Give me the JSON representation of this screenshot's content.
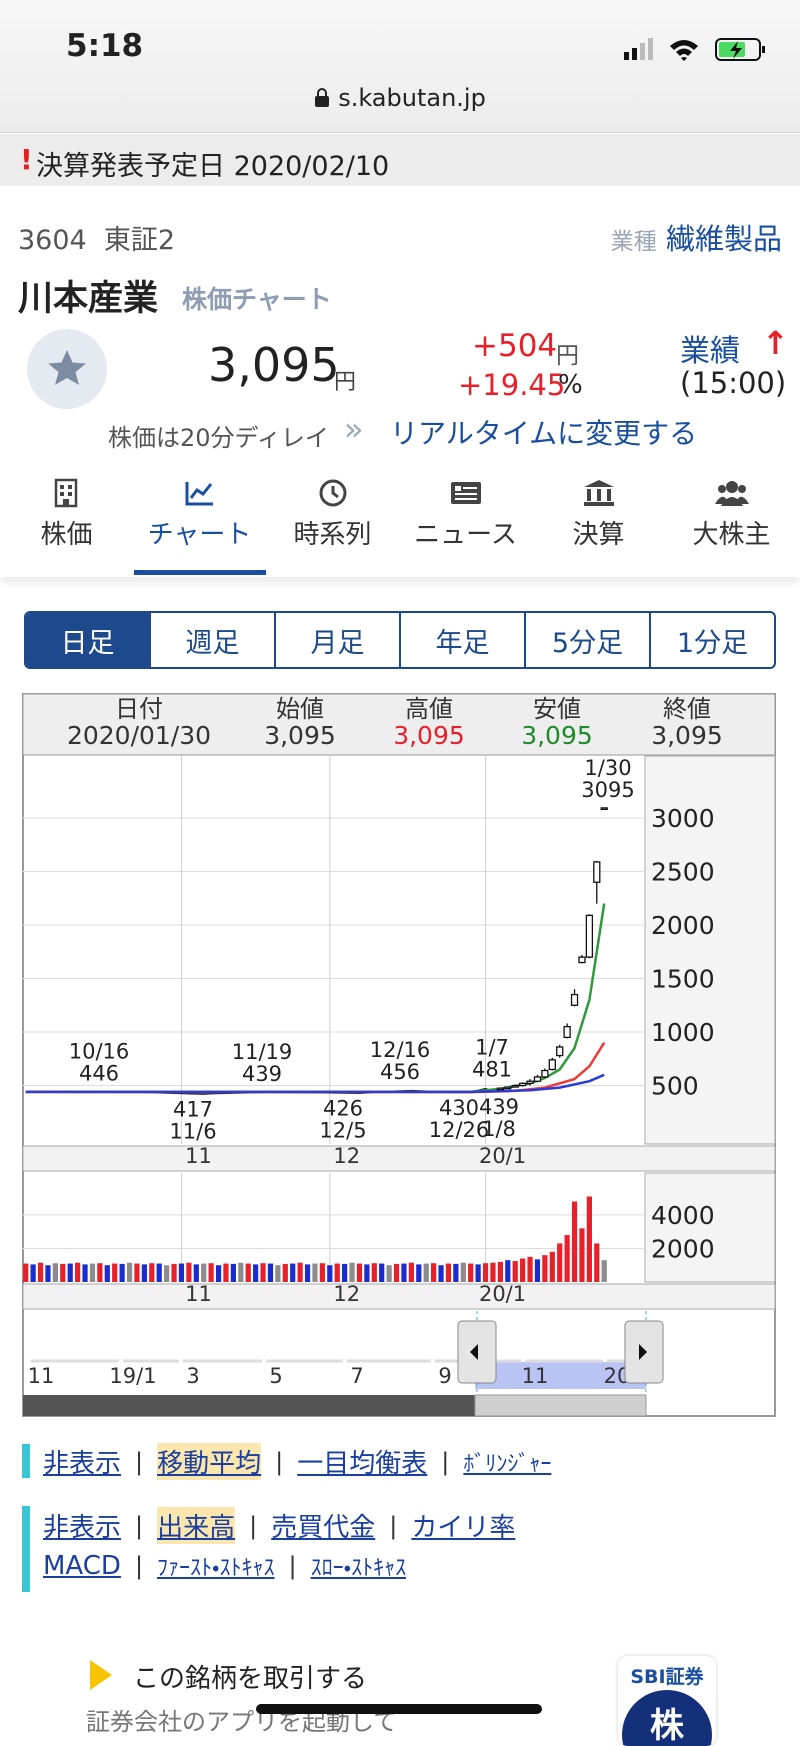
{
  "status_bar": {
    "time": "5:18",
    "url": "s.kabutan.jp"
  },
  "alert": {
    "mark": "!",
    "text": "決算発表予定日 2020/02/10"
  },
  "stock": {
    "code": "3604",
    "market": "東証2",
    "industry_label": "業種",
    "industry": "繊維製品",
    "name": "川本産業",
    "name_suffix": "株価チャート",
    "price": "3,095",
    "price_unit": "円",
    "change": "+504",
    "change_unit": "円",
    "change_pct": "+19.45",
    "pct_unit": "%",
    "results": "業績",
    "results_arrow": "↑",
    "time": "(15:00)",
    "delay_note": "株価は20分ディレイ",
    "delay_arrow": "»",
    "realtime_link": "リアルタイムに変更する"
  },
  "tabs": [
    "株価",
    "チャート",
    "時系列",
    "ニュース",
    "決算",
    "大株主"
  ],
  "periods": [
    "日足",
    "週足",
    "月足",
    "年足",
    "5分足",
    "1分足"
  ],
  "quote": {
    "headers": [
      "日付",
      "始値",
      "高値",
      "安値",
      "終値"
    ],
    "values": [
      "2020/01/30",
      "3,095",
      "3,095",
      "3,095",
      "3,095"
    ]
  },
  "chart_data": [
    {
      "type": "candlestick",
      "ylim": [
        0,
        3580
      ],
      "yticks": [
        500,
        1000,
        1500,
        2000,
        2500,
        3000
      ],
      "xlim": [
        -0.5,
        83.5
      ],
      "xticks": [
        {
          "value": 21,
          "label": "11"
        },
        {
          "value": 41,
          "label": "12"
        },
        {
          "value": 62,
          "label": "20/1"
        }
      ],
      "grid": true,
      "up_color": "#ffffff",
      "down_color": "#2a3bd6",
      "candles": {
        "x": [
          64,
          65,
          66,
          67,
          68,
          69,
          70,
          71,
          72,
          73,
          74,
          75,
          76,
          77,
          78
        ],
        "open": [
          470,
          481,
          490,
          500,
          520,
          540,
          580,
          650,
          780,
          950,
          1250,
          1650,
          1700,
          2400,
          3095
        ],
        "high": [
          481,
          490,
          510,
          530,
          560,
          600,
          660,
          760,
          880,
          1080,
          1400,
          1720,
          2100,
          2600,
          3095
        ],
        "low": [
          460,
          470,
          480,
          490,
          500,
          530,
          570,
          640,
          760,
          940,
          1240,
          1640,
          1690,
          2200,
          3095
        ],
        "close": [
          475,
          485,
          500,
          520,
          540,
          580,
          640,
          740,
          860,
          1050,
          1350,
          1700,
          2090,
          2590,
          3095
        ]
      },
      "series": [
        {
          "color": "#222222",
          "x": [
            0,
            5,
            10,
            11,
            15,
            20,
            24,
            25,
            30,
            33,
            35,
            40,
            45,
            48,
            50,
            52,
            55,
            58,
            60,
            62,
            63,
            64
          ],
          "values": [
            440,
            442,
            444,
            444,
            438,
            428,
            420,
            424,
            432,
            437,
            435,
            432,
            428,
            440,
            448,
            452,
            444,
            434,
            438,
            470,
            448,
            475
          ]
        },
        {
          "color": "#2e9a3a",
          "x": [
            0,
            60,
            64,
            68,
            70,
            72,
            74,
            76,
            78
          ],
          "values": [
            440,
            440,
            470,
            520,
            570,
            650,
            850,
            1300,
            2200
          ]
        },
        {
          "color": "#f03a3a",
          "x": [
            0,
            60,
            66,
            70,
            74,
            76,
            78
          ],
          "values": [
            440,
            438,
            450,
            480,
            560,
            680,
            900
          ]
        },
        {
          "color": "#2a3bd6",
          "x": [
            0,
            60,
            68,
            72,
            76,
            78
          ],
          "values": [
            440,
            440,
            455,
            480,
            540,
            600
          ]
        }
      ],
      "high_labels": [
        {
          "date": "10/16",
          "value": 446
        },
        {
          "date": "11/19",
          "value": 439
        },
        {
          "date": "12/16",
          "value": 456
        },
        {
          "date": "1/7",
          "value": 481
        },
        {
          "date": "1/30",
          "value": 3095
        }
      ],
      "low_labels": [
        {
          "date": "11/6",
          "value": 417
        },
        {
          "date": "12/5",
          "value": 426
        },
        {
          "date": "12/26",
          "value": 430
        },
        {
          "date": "1/8",
          "value": 439
        }
      ]
    },
    {
      "type": "bar",
      "ylim": [
        0,
        6500
      ],
      "yticks": [
        2000,
        4000
      ],
      "xlim": [
        -0.5,
        83.5
      ],
      "xticks": [
        {
          "value": 21,
          "label": "11"
        },
        {
          "value": 41,
          "label": "12"
        },
        {
          "value": 62,
          "label": "20/1"
        }
      ],
      "palette": {
        "up": "#e8202a",
        "down": "#1a2bd0",
        "flat": "#8c8c8c"
      },
      "values": [
        1100,
        1050,
        1150,
        1000,
        1120,
        1080,
        1100,
        1150,
        1050,
        1100,
        1120,
        1000,
        1100,
        1080,
        1150,
        1100,
        1050,
        1120,
        1100,
        1000,
        1080,
        1100,
        1150,
        1050,
        1100,
        1120,
        1000,
        1100,
        1080,
        1150,
        1100,
        1050,
        1120,
        1100,
        1000,
        1080,
        1100,
        1150,
        1050,
        1100,
        1120,
        1000,
        1100,
        1080,
        1150,
        1100,
        1050,
        1120,
        1100,
        1000,
        1080,
        1100,
        1150,
        1050,
        1100,
        1120,
        1000,
        1100,
        1080,
        1150,
        1100,
        1050,
        1120,
        1150,
        1200,
        1300,
        1250,
        1400,
        1500,
        1350,
        1600,
        1800,
        2300,
        2800,
        4800,
        3200,
        5100,
        2300,
        1300
      ],
      "moves": [
        "up",
        "down",
        "up",
        "down",
        "flat",
        "up",
        "down",
        "up",
        "down",
        "flat",
        "up",
        "down",
        "up",
        "down",
        "flat",
        "up",
        "down",
        "up",
        "down",
        "flat",
        "up",
        "down",
        "up",
        "down",
        "flat",
        "up",
        "down",
        "up",
        "down",
        "flat",
        "up",
        "down",
        "up",
        "down",
        "flat",
        "up",
        "down",
        "up",
        "down",
        "flat",
        "up",
        "down",
        "up",
        "down",
        "flat",
        "up",
        "down",
        "up",
        "down",
        "flat",
        "up",
        "down",
        "up",
        "down",
        "flat",
        "up",
        "down",
        "up",
        "down",
        "flat",
        "up",
        "down",
        "up",
        "up",
        "up",
        "down",
        "up",
        "up",
        "up",
        "down",
        "up",
        "up",
        "up",
        "up",
        "up",
        "up",
        "up",
        "up",
        "flat"
      ]
    }
  ],
  "navigator": {
    "labels": [
      "11",
      "19/1",
      "3",
      "5",
      "7",
      "9",
      "11",
      "20"
    ]
  },
  "links": {
    "separator": "|",
    "overlay": [
      "非表示",
      "移動平均",
      "一目均衡表",
      "ﾎﾞﾘﾝｼﾞｬｰ"
    ],
    "lower_row1": [
      "非表示",
      "出来高",
      "売買代金",
      "カイリ率"
    ],
    "lower_row2": [
      "MACD",
      "ﾌｧｰｽﾄ・ｽﾄｷｬｽ",
      "ｽﾛｰ・ｽﾄｷｬｽ"
    ]
  },
  "promo": {
    "text": "この銘柄を取引する",
    "sub": "証券会社のアプリを起動して",
    "logo": "SBI証券",
    "logo_char": "株"
  }
}
